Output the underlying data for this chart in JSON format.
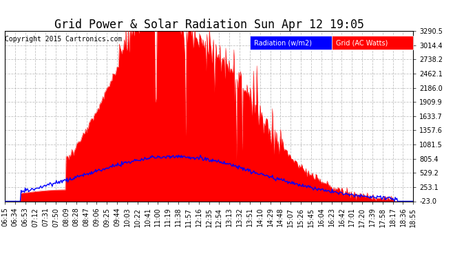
{
  "title": "Grid Power & Solar Radiation Sun Apr 12 19:05",
  "copyright": "Copyright 2015 Cartronics.com",
  "background_color": "#ffffff",
  "plot_bg_color": "#ffffff",
  "grid_color": "#bbbbbb",
  "ylim_min": -23.0,
  "ylim_max": 3290.5,
  "yticks": [
    -23.0,
    253.1,
    529.2,
    805.4,
    1081.5,
    1357.6,
    1633.7,
    1909.9,
    2186.0,
    2462.1,
    2738.2,
    3014.4,
    3290.5
  ],
  "xtick_labels": [
    "06:15",
    "06:34",
    "06:53",
    "07:12",
    "07:31",
    "07:50",
    "08:09",
    "08:28",
    "08:47",
    "09:06",
    "09:25",
    "09:44",
    "10:03",
    "10:22",
    "10:41",
    "11:00",
    "11:19",
    "11:38",
    "11:57",
    "12:16",
    "12:35",
    "12:54",
    "13:13",
    "13:32",
    "13:51",
    "14:10",
    "14:29",
    "14:48",
    "15:07",
    "15:26",
    "15:45",
    "16:04",
    "16:23",
    "16:42",
    "17:01",
    "17:20",
    "17:39",
    "17:58",
    "18:17",
    "18:36",
    "18:55"
  ],
  "legend_radiation_label": "Radiation (w/m2)",
  "legend_grid_label": "Grid (AC Watts)",
  "solar_fill_color": "#ff0000",
  "radiation_line_color": "#0000ff",
  "title_fontsize": 12,
  "tick_fontsize": 7,
  "copyright_fontsize": 7,
  "legend_fontsize": 7
}
